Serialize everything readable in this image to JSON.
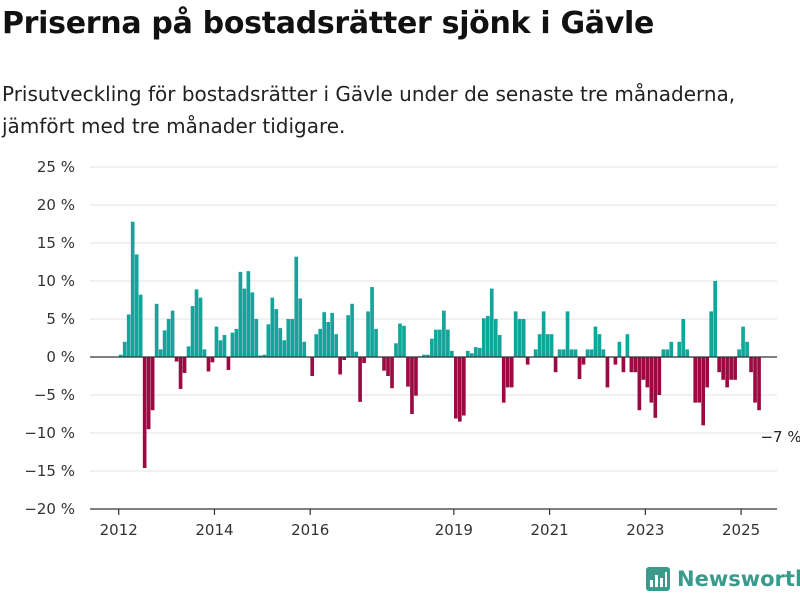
{
  "title": "Priserna på bostadsrätter sjönk i Gävle",
  "subtitle": "Prisutveckling för bostadsrätter i Gävle under de senaste tre månaderna, jämfört med tre månader tidigare.",
  "brand": "Newsworthy",
  "colors": {
    "positive": "#12a59a",
    "negative": "#9b0a42",
    "brand": "#3a9a8b"
  },
  "chart_data": {
    "type": "bar",
    "ylim": [
      -20,
      25
    ],
    "yticks": [
      25,
      20,
      15,
      10,
      5,
      0,
      -5,
      -10,
      -15,
      -20
    ],
    "ytick_labels": [
      "25 %",
      "20 %",
      "15 %",
      "10 %",
      "5 %",
      "0 %",
      "−5 %",
      "−10 %",
      "−15 %",
      "−20 %"
    ],
    "xticks": [
      {
        "label": "2012",
        "x": 2012.0
      },
      {
        "label": "2014",
        "x": 2014.0
      },
      {
        "label": "2016",
        "x": 2016.0
      },
      {
        "label": "2019",
        "x": 2019.0
      },
      {
        "label": "2021",
        "x": 2021.0
      },
      {
        "label": "2023",
        "x": 2023.0
      },
      {
        "label": "2025",
        "x": 2025.0
      }
    ],
    "x_start": "2012-01",
    "xlim": [
      2011.4,
      2025.75
    ],
    "values": [
      0.3,
      2,
      5.6,
      17.8,
      13.5,
      8.2,
      -14.6,
      -9.5,
      -7,
      7,
      1,
      3.5,
      5,
      6.1,
      -0.6,
      -4.2,
      -2.1,
      1.4,
      6.7,
      8.9,
      7.8,
      1,
      -1.9,
      -0.7,
      4,
      2.2,
      2.9,
      -1.7,
      3.2,
      3.7,
      11.2,
      9,
      11.3,
      8.5,
      5,
      0.2,
      0.3,
      4.3,
      7.8,
      6.3,
      3.8,
      2.2,
      5,
      5,
      13.2,
      7.7,
      2,
      0,
      -2.5,
      3,
      3.7,
      5.9,
      4.6,
      5.8,
      3,
      -2.3,
      -0.4,
      5.5,
      7,
      0.7,
      -5.9,
      -0.8,
      6,
      9.2,
      3.7,
      0,
      -1.8,
      -2.5,
      -4.1,
      1.8,
      4.4,
      4.1,
      -3.9,
      -7.5,
      -5.1,
      0.1,
      0.3,
      0.3,
      2.4,
      3.6,
      3.6,
      6.1,
      3.6,
      0.8,
      -8.1,
      -8.5,
      -7.7,
      0.8,
      0.5,
      1.3,
      1.2,
      5.1,
      5.4,
      9,
      5,
      2.9,
      -6,
      -4,
      -4,
      6,
      5,
      5,
      -1,
      0,
      1,
      3,
      6,
      3,
      3,
      -2,
      1,
      1,
      6,
      1,
      1,
      -2.9,
      -1,
      1,
      1,
      4,
      3,
      1,
      -4,
      0,
      -1,
      2,
      -2,
      3,
      -2,
      -2,
      -7,
      -3,
      -4,
      -6,
      -8,
      -5,
      1,
      1,
      2,
      0,
      2,
      5,
      1,
      0,
      -6,
      -6,
      -9,
      -4,
      6,
      10,
      -2,
      -3,
      -4,
      -3,
      -3,
      1,
      4,
      2,
      -2,
      -6,
      -7
    ],
    "annotations": [
      {
        "text": "−7 %"
      }
    ]
  }
}
